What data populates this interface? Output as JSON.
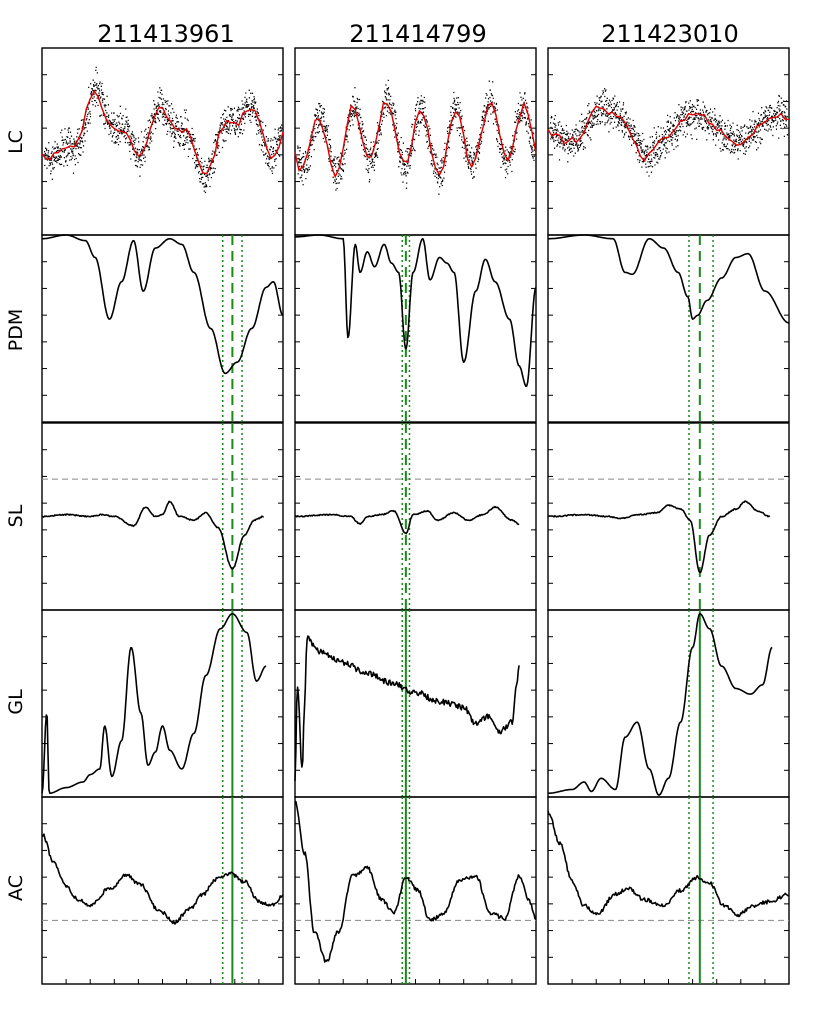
{
  "figure": {
    "columns": [
      "211413961",
      "211414799",
      "211423010"
    ],
    "rows": [
      "LC",
      "PDM",
      "SL",
      "GL",
      "AC"
    ]
  },
  "chart_data": {
    "type": "line",
    "description_rows": [
      "LC",
      "PDM",
      "SL",
      "GL",
      "AC"
    ],
    "colors": {
      "data": "#000000",
      "binned": "#dd0000",
      "period_marker": "#1a8a1a",
      "zero_line": "#888888"
    },
    "period_markers": [
      {
        "column": "211413961",
        "period_frac": 0.79,
        "lower_frac": 0.75,
        "upper_frac": 0.83
      },
      {
        "column": "211414799",
        "period_frac": 0.46,
        "lower_frac": 0.445,
        "upper_frac": 0.475
      },
      {
        "column": "211423010",
        "period_frac": 0.63,
        "lower_frac": 0.585,
        "upper_frac": 0.685
      }
    ],
    "series": {
      "PDM": [
        [
          [
            0,
            0.02
          ],
          [
            0.1,
            0.0
          ],
          [
            0.18,
            0.03
          ],
          [
            0.22,
            0.12
          ],
          [
            0.28,
            0.45
          ],
          [
            0.33,
            0.25
          ],
          [
            0.38,
            0.03
          ],
          [
            0.42,
            0.3
          ],
          [
            0.47,
            0.07
          ],
          [
            0.53,
            0.02
          ],
          [
            0.58,
            0.05
          ],
          [
            0.63,
            0.2
          ],
          [
            0.7,
            0.5
          ],
          [
            0.76,
            0.74
          ],
          [
            0.81,
            0.68
          ],
          [
            0.87,
            0.5
          ],
          [
            0.93,
            0.28
          ],
          [
            0.96,
            0.25
          ],
          [
            1.0,
            0.43
          ]
        ],
        [
          [
            0,
            0.01
          ],
          [
            0.1,
            0.0
          ],
          [
            0.2,
            0.02
          ],
          [
            0.22,
            0.55
          ],
          [
            0.25,
            0.05
          ],
          [
            0.27,
            0.2
          ],
          [
            0.3,
            0.09
          ],
          [
            0.33,
            0.17
          ],
          [
            0.37,
            0.05
          ],
          [
            0.4,
            0.15
          ],
          [
            0.43,
            0.2
          ],
          [
            0.46,
            0.61
          ],
          [
            0.49,
            0.2
          ],
          [
            0.53,
            0.02
          ],
          [
            0.56,
            0.24
          ],
          [
            0.6,
            0.12
          ],
          [
            0.63,
            0.15
          ],
          [
            0.66,
            0.2
          ],
          [
            0.7,
            0.68
          ],
          [
            0.75,
            0.3
          ],
          [
            0.79,
            0.13
          ],
          [
            0.83,
            0.25
          ],
          [
            0.89,
            0.45
          ],
          [
            0.93,
            0.7
          ],
          [
            0.96,
            0.81
          ],
          [
            1.0,
            0.28
          ]
        ],
        [
          [
            0,
            0.02
          ],
          [
            0.15,
            0.0
          ],
          [
            0.27,
            0.02
          ],
          [
            0.32,
            0.2
          ],
          [
            0.35,
            0.21
          ],
          [
            0.42,
            0.02
          ],
          [
            0.48,
            0.07
          ],
          [
            0.54,
            0.2
          ],
          [
            0.58,
            0.33
          ],
          [
            0.6,
            0.45
          ],
          [
            0.62,
            0.43
          ],
          [
            0.66,
            0.35
          ],
          [
            0.72,
            0.23
          ],
          [
            0.78,
            0.12
          ],
          [
            0.83,
            0.1
          ],
          [
            0.9,
            0.3
          ],
          [
            1.0,
            0.47
          ]
        ]
      ],
      "SL": [
        [
          [
            0,
            0.5
          ],
          [
            0.1,
            0.49
          ],
          [
            0.2,
            0.5
          ],
          [
            0.25,
            0.49
          ],
          [
            0.3,
            0.5
          ],
          [
            0.38,
            0.55
          ],
          [
            0.43,
            0.45
          ],
          [
            0.47,
            0.5
          ],
          [
            0.5,
            0.49
          ],
          [
            0.53,
            0.42
          ],
          [
            0.57,
            0.5
          ],
          [
            0.63,
            0.52
          ],
          [
            0.68,
            0.48
          ],
          [
            0.73,
            0.56
          ],
          [
            0.79,
            0.78
          ],
          [
            0.84,
            0.6
          ],
          [
            0.88,
            0.52
          ],
          [
            0.92,
            0.5
          ]
        ],
        [
          [
            0,
            0.5
          ],
          [
            0.15,
            0.49
          ],
          [
            0.23,
            0.5
          ],
          [
            0.27,
            0.54
          ],
          [
            0.3,
            0.5
          ],
          [
            0.36,
            0.49
          ],
          [
            0.41,
            0.47
          ],
          [
            0.46,
            0.59
          ],
          [
            0.49,
            0.49
          ],
          [
            0.55,
            0.47
          ],
          [
            0.59,
            0.52
          ],
          [
            0.66,
            0.48
          ],
          [
            0.72,
            0.52
          ],
          [
            0.78,
            0.49
          ],
          [
            0.83,
            0.45
          ],
          [
            0.9,
            0.52
          ],
          [
            0.93,
            0.54
          ]
        ],
        [
          [
            0,
            0.5
          ],
          [
            0.15,
            0.49
          ],
          [
            0.25,
            0.5
          ],
          [
            0.3,
            0.51
          ],
          [
            0.38,
            0.49
          ],
          [
            0.45,
            0.48
          ],
          [
            0.5,
            0.44
          ],
          [
            0.55,
            0.46
          ],
          [
            0.59,
            0.52
          ],
          [
            0.63,
            0.8
          ],
          [
            0.67,
            0.6
          ],
          [
            0.72,
            0.5
          ],
          [
            0.78,
            0.46
          ],
          [
            0.82,
            0.42
          ],
          [
            0.87,
            0.47
          ],
          [
            0.92,
            0.5
          ]
        ]
      ],
      "GL": [
        [
          [
            0,
            0.98
          ],
          [
            0.02,
            0.55
          ],
          [
            0.03,
            0.98
          ],
          [
            0.1,
            0.95
          ],
          [
            0.17,
            0.92
          ],
          [
            0.2,
            0.88
          ],
          [
            0.24,
            0.85
          ],
          [
            0.26,
            0.62
          ],
          [
            0.29,
            0.89
          ],
          [
            0.33,
            0.7
          ],
          [
            0.37,
            0.2
          ],
          [
            0.41,
            0.55
          ],
          [
            0.44,
            0.83
          ],
          [
            0.47,
            0.76
          ],
          [
            0.5,
            0.62
          ],
          [
            0.53,
            0.75
          ],
          [
            0.58,
            0.85
          ],
          [
            0.63,
            0.66
          ],
          [
            0.68,
            0.35
          ],
          [
            0.74,
            0.1
          ],
          [
            0.79,
            0.02
          ],
          [
            0.85,
            0.12
          ],
          [
            0.89,
            0.38
          ],
          [
            0.93,
            0.3
          ]
        ],
        [
          [
            0,
            0.9
          ],
          [
            0.01,
            0.4
          ],
          [
            0.03,
            0.85
          ],
          [
            0.04,
            0.5
          ],
          [
            0.05,
            0.15
          ],
          [
            0.1,
            0.22
          ],
          [
            0.2,
            0.28
          ],
          [
            0.3,
            0.34
          ],
          [
            0.4,
            0.39
          ],
          [
            0.5,
            0.44
          ],
          [
            0.6,
            0.49
          ],
          [
            0.7,
            0.52
          ],
          [
            0.75,
            0.61
          ],
          [
            0.8,
            0.57
          ],
          [
            0.85,
            0.65
          ],
          [
            0.9,
            0.6
          ],
          [
            0.92,
            0.4
          ],
          [
            0.93,
            0.3
          ]
        ],
        [
          [
            0,
            0.98
          ],
          [
            0.1,
            0.96
          ],
          [
            0.15,
            0.92
          ],
          [
            0.18,
            0.97
          ],
          [
            0.22,
            0.9
          ],
          [
            0.28,
            0.96
          ],
          [
            0.32,
            0.68
          ],
          [
            0.37,
            0.6
          ],
          [
            0.42,
            0.85
          ],
          [
            0.46,
            0.99
          ],
          [
            0.5,
            0.9
          ],
          [
            0.55,
            0.6
          ],
          [
            0.6,
            0.2
          ],
          [
            0.63,
            0.02
          ],
          [
            0.67,
            0.1
          ],
          [
            0.72,
            0.3
          ],
          [
            0.78,
            0.42
          ],
          [
            0.84,
            0.45
          ],
          [
            0.89,
            0.4
          ],
          [
            0.93,
            0.2
          ]
        ]
      ],
      "AC": [
        [
          [
            0,
            0.2
          ],
          [
            0.05,
            0.35
          ],
          [
            0.1,
            0.48
          ],
          [
            0.15,
            0.55
          ],
          [
            0.2,
            0.58
          ],
          [
            0.28,
            0.49
          ],
          [
            0.35,
            0.42
          ],
          [
            0.41,
            0.47
          ],
          [
            0.48,
            0.6
          ],
          [
            0.55,
            0.67
          ],
          [
            0.61,
            0.6
          ],
          [
            0.67,
            0.52
          ],
          [
            0.72,
            0.44
          ],
          [
            0.78,
            0.41
          ],
          [
            0.84,
            0.45
          ],
          [
            0.9,
            0.56
          ],
          [
            0.95,
            0.58
          ],
          [
            1.0,
            0.53
          ]
        ],
        [
          [
            0,
            0.02
          ],
          [
            0.04,
            0.3
          ],
          [
            0.08,
            0.72
          ],
          [
            0.13,
            0.88
          ],
          [
            0.18,
            0.72
          ],
          [
            0.24,
            0.42
          ],
          [
            0.3,
            0.38
          ],
          [
            0.36,
            0.55
          ],
          [
            0.41,
            0.62
          ],
          [
            0.46,
            0.43
          ],
          [
            0.51,
            0.5
          ],
          [
            0.56,
            0.66
          ],
          [
            0.62,
            0.62
          ],
          [
            0.68,
            0.45
          ],
          [
            0.75,
            0.42
          ],
          [
            0.81,
            0.62
          ],
          [
            0.87,
            0.65
          ],
          [
            0.93,
            0.42
          ],
          [
            0.97,
            0.55
          ],
          [
            1.0,
            0.65
          ]
        ],
        [
          [
            0,
            0.08
          ],
          [
            0.05,
            0.25
          ],
          [
            0.1,
            0.45
          ],
          [
            0.15,
            0.58
          ],
          [
            0.2,
            0.63
          ],
          [
            0.28,
            0.52
          ],
          [
            0.33,
            0.49
          ],
          [
            0.4,
            0.55
          ],
          [
            0.48,
            0.58
          ],
          [
            0.55,
            0.5
          ],
          [
            0.62,
            0.43
          ],
          [
            0.67,
            0.46
          ],
          [
            0.73,
            0.58
          ],
          [
            0.79,
            0.63
          ],
          [
            0.85,
            0.58
          ],
          [
            0.92,
            0.56
          ],
          [
            1.0,
            0.52
          ]
        ]
      ]
    }
  }
}
